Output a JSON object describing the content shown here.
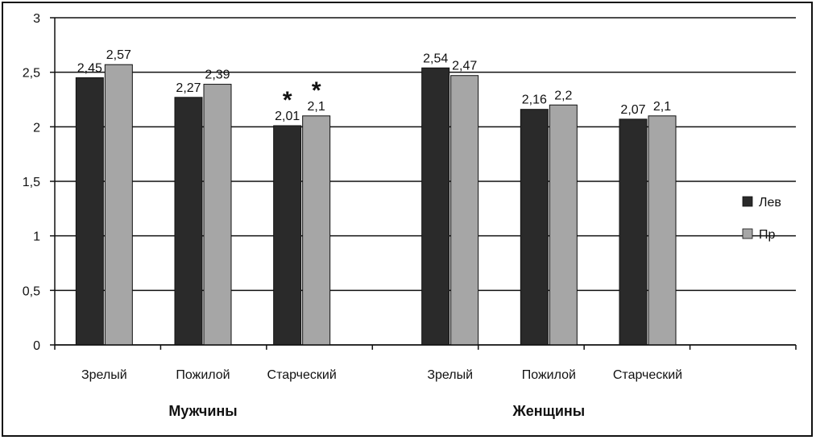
{
  "chart_data": {
    "type": "bar",
    "title": "",
    "xlabel": "",
    "ylabel": "",
    "ylim": [
      0,
      3
    ],
    "yticks": [
      0,
      0.5,
      1,
      1.5,
      2,
      2.5,
      3
    ],
    "ytick_labels": [
      "0",
      "0,5",
      "1",
      "1,5",
      "2",
      "2,5",
      "3"
    ],
    "grid": true,
    "legend_position": "right",
    "groups": [
      {
        "label": "Мужчины",
        "categories": [
          "Зрелый",
          "Пожилой",
          "Старческий"
        ],
        "series": [
          {
            "name": "Лев",
            "values": [
              2.45,
              2.27,
              2.01
            ],
            "labels": [
              "2,45",
              "2,27",
              "2,01"
            ],
            "color": "#2a2a2a"
          },
          {
            "name": "Пр",
            "values": [
              2.57,
              2.39,
              2.1
            ],
            "labels": [
              "2,57",
              "2,39",
              "2,1"
            ],
            "color": "#a6a6a6"
          }
        ],
        "markers": [
          {
            "category_index": 2,
            "series_index": 0,
            "text": "*"
          },
          {
            "category_index": 2,
            "series_index": 1,
            "text": "*"
          }
        ]
      },
      {
        "label": "Женщины",
        "categories": [
          "Зрелый",
          "Пожилой",
          "Старческий"
        ],
        "series": [
          {
            "name": "Лев",
            "values": [
              2.54,
              2.16,
              2.07
            ],
            "labels": [
              "2,54",
              "2,16",
              "2,07"
            ],
            "color": "#2a2a2a"
          },
          {
            "name": "Пр",
            "values": [
              2.47,
              2.2,
              2.1
            ],
            "labels": [
              "2,47",
              "2,2",
              "2,1"
            ],
            "color": "#a6a6a6"
          }
        ],
        "markers": []
      }
    ],
    "legend": [
      {
        "name": "Лев",
        "color": "#2a2a2a"
      },
      {
        "name": "Пр",
        "color": "#a6a6a6"
      }
    ]
  }
}
